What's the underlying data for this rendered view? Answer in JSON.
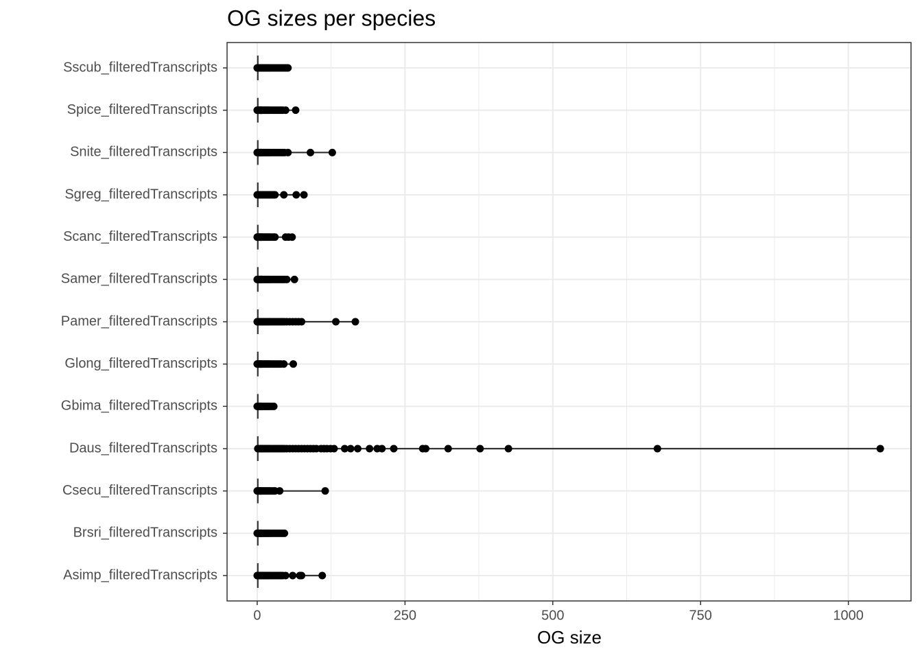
{
  "chart_data": {
    "type": "strip",
    "title": "OG sizes per species",
    "x_label": "OG size",
    "categories": [
      "Asimp_filteredTranscripts",
      "Brsri_filteredTranscripts",
      "Csecu_filteredTranscripts",
      "Daus_filteredTranscripts",
      "Gbima_filteredTranscripts",
      "Glong_filteredTranscripts",
      "Pamer_filteredTranscripts",
      "Samer_filteredTranscripts",
      "Scanc_filteredTranscripts",
      "Sgreg_filteredTranscripts",
      "Snite_filteredTranscripts",
      "Spice_filteredTranscripts",
      "Sscub_filteredTranscripts"
    ],
    "medians": [
      1,
      1,
      1,
      1,
      1,
      1,
      1,
      1,
      1,
      1,
      1,
      1,
      1
    ],
    "values": [
      [
        0,
        1,
        2,
        3,
        4,
        5,
        6,
        7,
        8,
        10,
        12,
        14,
        16,
        18,
        20,
        22,
        25,
        28,
        31,
        34,
        37,
        40,
        43,
        48,
        60,
        72,
        75,
        110
      ],
      [
        0,
        1,
        2,
        3,
        4,
        5,
        6,
        7,
        8,
        10,
        12,
        14,
        16,
        18,
        20,
        22,
        25,
        28,
        31,
        34,
        37,
        40,
        43,
        46
      ],
      [
        0,
        1,
        2,
        3,
        4,
        5,
        6,
        7,
        8,
        10,
        12,
        14,
        16,
        18,
        20,
        22,
        25,
        28,
        30,
        38,
        115
      ],
      [
        1,
        2,
        3,
        4,
        5,
        6,
        7,
        8,
        10,
        12,
        14,
        16,
        18,
        20,
        22,
        25,
        28,
        31,
        34,
        37,
        40,
        43,
        46,
        50,
        55,
        60,
        65,
        70,
        75,
        80,
        85,
        90,
        95,
        100,
        108,
        113,
        118,
        124,
        130,
        148,
        158,
        170,
        190,
        203,
        211,
        231,
        280,
        285,
        323,
        377,
        425,
        677,
        1054
      ],
      [
        0,
        1,
        2,
        3,
        4,
        5,
        6,
        7,
        8,
        10,
        12,
        14,
        16,
        18,
        20,
        22,
        25,
        28
      ],
      [
        0,
        1,
        2,
        3,
        4,
        5,
        6,
        7,
        8,
        10,
        12,
        14,
        16,
        18,
        20,
        22,
        25,
        28,
        31,
        34,
        37,
        40,
        45,
        61
      ],
      [
        0,
        1,
        2,
        3,
        4,
        5,
        6,
        7,
        8,
        10,
        12,
        14,
        16,
        18,
        20,
        22,
        25,
        28,
        31,
        34,
        37,
        40,
        43,
        46,
        50,
        55,
        60,
        65,
        70,
        75,
        133,
        166
      ],
      [
        0,
        1,
        2,
        3,
        4,
        5,
        6,
        7,
        8,
        10,
        12,
        14,
        16,
        18,
        20,
        22,
        25,
        28,
        31,
        34,
        37,
        40,
        43,
        46,
        50,
        63
      ],
      [
        0,
        1,
        2,
        3,
        4,
        5,
        6,
        7,
        8,
        10,
        12,
        14,
        16,
        18,
        20,
        22,
        25,
        28,
        30,
        48,
        53,
        59
      ],
      [
        0,
        1,
        2,
        3,
        4,
        5,
        6,
        7,
        8,
        10,
        12,
        14,
        16,
        18,
        20,
        22,
        25,
        28,
        30,
        45,
        66,
        79
      ],
      [
        0,
        1,
        2,
        3,
        4,
        5,
        6,
        7,
        8,
        10,
        12,
        14,
        16,
        18,
        20,
        22,
        25,
        28,
        31,
        34,
        37,
        40,
        43,
        46,
        52,
        90,
        127
      ],
      [
        0,
        1,
        2,
        3,
        4,
        5,
        6,
        7,
        8,
        10,
        12,
        14,
        16,
        18,
        20,
        22,
        25,
        28,
        31,
        34,
        37,
        40,
        43,
        48,
        65
      ],
      [
        0,
        1,
        2,
        3,
        4,
        5,
        6,
        7,
        8,
        10,
        12,
        14,
        16,
        18,
        20,
        22,
        25,
        28,
        31,
        34,
        37,
        40,
        43,
        46,
        49,
        52
      ]
    ],
    "color": "#000000",
    "xlim": [
      -51,
      1106
    ],
    "xticks": [
      0,
      250,
      500,
      750,
      1000
    ],
    "grid": true
  }
}
